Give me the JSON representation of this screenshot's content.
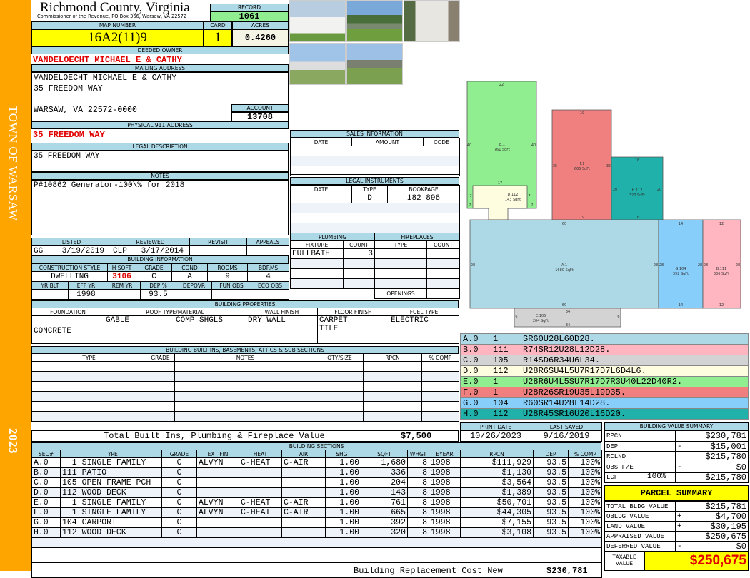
{
  "side": {
    "town": "TOWN OF WARSAW",
    "year": "2023"
  },
  "header": {
    "county": "Richmond County, Virginia",
    "subtitle": "Commissioner of the Revenue, PO Box 366, Warsaw, VA 22572",
    "record_label": "RECORD",
    "record": "1061"
  },
  "parcel": {
    "map_label": "MAP NUMBER",
    "map": "16A2(11)9",
    "card_label": "CARD",
    "card": "1",
    "acres_label": "ACRES",
    "acres": "0.4260"
  },
  "owner": {
    "label": "DEEDED OWNER",
    "name": "VANDELOECHT MICHAEL E & CATHY"
  },
  "mailing": {
    "label": "MAILING ADDRESS",
    "line1": "VANDELOECHT MICHAEL E & CATHY",
    "line2": "35 FREEDOM WAY",
    "line3": "WARSAW, VA 22572-0000",
    "account_label": "ACCOUNT",
    "account": "13708"
  },
  "physical": {
    "label": "PHYSICAL 911 ADDRESS",
    "value": "35 FREEDOM WAY"
  },
  "legal": {
    "label": "LEGAL DESCRIPTION",
    "value": "35 FREEDOM WAY"
  },
  "notes": {
    "label": "NOTES",
    "value": "P#10862 Generator-100\\% for 2018"
  },
  "listed": {
    "headers": [
      "LISTED",
      "REVIEWED",
      "REVISIT",
      "APPEALS"
    ],
    "values": [
      "GG    3/19/2019",
      "CLP   3/17/2014",
      "",
      ""
    ]
  },
  "building_info": {
    "label": "BUILDING INFORMATION",
    "headers1": [
      "CONSTRUCTION STYLE",
      "H SQFT",
      "GRADE",
      "COND",
      "ROOMS",
      "BDRMS"
    ],
    "values1": [
      "DWELLING",
      "3106",
      "C",
      "A",
      "9",
      "4"
    ],
    "headers2": [
      "YR BLT",
      "EFF YR",
      "REM YR",
      "DEP %",
      "DEPOVR",
      "FUN OBS",
      "ECO OBS"
    ],
    "values2": [
      "",
      "1998",
      "",
      "93.5",
      "",
      "",
      ""
    ]
  },
  "sales": {
    "label": "SALES INFORMATION",
    "headers": [
      "DATE",
      "AMOUNT",
      "CODE"
    ]
  },
  "instruments": {
    "label": "LEGAL INSTRUMENTS",
    "headers": [
      "DATE",
      "TYPE",
      "BOOKPAGE"
    ],
    "rows": [
      [
        "",
        "D",
        "182 896"
      ]
    ]
  },
  "plumbing": {
    "label": "PLUMBING",
    "headers": [
      "FIXTURE",
      "COUNT"
    ],
    "rows": [
      [
        "FULLBATH",
        "3"
      ]
    ]
  },
  "fireplaces": {
    "label": "FIREPLACES",
    "headers": [
      "TYPE",
      "COUNT"
    ],
    "openings_label": "OPENINGS"
  },
  "properties": {
    "label": "BUILDING PROPERTIES",
    "headers": [
      "FOUNDATION",
      "ROOF TYPE/MATERIAL",
      "WALL FINISH",
      "FLOOR FINISH",
      "FUEL TYPE"
    ],
    "foundation": "CONCRETE",
    "roof_type": "GABLE",
    "roof_material": "COMP SHGLS",
    "wall": "DRY WALL",
    "floor1": "CARPET",
    "floor2": "TILE",
    "fuel": "ELECTRIC"
  },
  "builtins": {
    "label": "BUILDING BUILT INS, BASEMENTS, ATTICS & SUB SECTIONS",
    "headers": [
      "TYPE",
      "GRADE",
      "NOTES",
      "QTY/SIZE",
      "RPCN",
      "% COMP"
    ],
    "total_label": "Total Built Ins, Plumbing & Fireplace Value",
    "total": "$7,500"
  },
  "dates": {
    "print_label": "PRINT DATE",
    "print": "10/26/2023",
    "saved_label": "LAST SAVED",
    "saved": "9/16/2019"
  },
  "sections": {
    "label": "BUILDING SECTIONS",
    "headers": [
      "SEC#",
      "TYPE",
      "GRADE",
      "EXT FIN",
      "HEAT",
      "AIR",
      "SHGT",
      "SQFT",
      "WHGT",
      "EYEAR",
      "RPCN",
      "DEP",
      "% COMP"
    ],
    "rows": [
      [
        "A.0",
        "  1 SINGLE FAMILY",
        "C",
        "ALVYN",
        "C-HEAT",
        "C-AIR",
        "1.00",
        "1,680",
        "8",
        "1998",
        "$111,929",
        "93.5",
        "100%"
      ],
      [
        "B.0",
        "111 PATIO",
        "C",
        "",
        "",
        "",
        "1.00",
        "336",
        "8",
        "1998",
        "$1,130",
        "93.5",
        "100%"
      ],
      [
        "C.0",
        "105 OPEN FRAME PCH",
        "C",
        "",
        "",
        "",
        "1.00",
        "204",
        "8",
        "1998",
        "$3,564",
        "93.5",
        "100%"
      ],
      [
        "D.0",
        "112 WOOD DECK",
        "C",
        "",
        "",
        "",
        "1.00",
        "143",
        "8",
        "1998",
        "$1,389",
        "93.5",
        "100%"
      ],
      [
        "E.0",
        "  1 SINGLE FAMILY",
        "C",
        "ALVYN",
        "C-HEAT",
        "C-AIR",
        "1.00",
        "761",
        "8",
        "1998",
        "$50,701",
        "93.5",
        "100%"
      ],
      [
        "F.0",
        "  1 SINGLE FAMILY",
        "C",
        "ALVYN",
        "C-HEAT",
        "C-AIR",
        "1.00",
        "665",
        "8",
        "1998",
        "$44,305",
        "93.5",
        "100%"
      ],
      [
        "G.0",
        "104 CARPORT",
        "C",
        "",
        "",
        "",
        "1.00",
        "392",
        "8",
        "1998",
        "$7,155",
        "93.5",
        "100%"
      ],
      [
        "H.0",
        "112 WOOD DECK",
        "C",
        "",
        "",
        "",
        "1.00",
        "320",
        "8",
        "1998",
        "$3,108",
        "93.5",
        "100%"
      ]
    ],
    "total_label": "Building Replacement Cost New",
    "total": "$230,781"
  },
  "sketch": {
    "labels": {
      "A": [
        "A.1",
        "1680 SqFt"
      ],
      "B": [
        "B.111",
        "336 SqFt"
      ],
      "C": [
        "C.105",
        "204 SqFt"
      ],
      "D": [
        "D.112",
        "143 SqFt"
      ],
      "E": [
        "E.1",
        "761 SqFt"
      ],
      "F": [
        "F.1",
        "665 SqFt"
      ],
      "G": [
        "G.104",
        "392 SqFt"
      ],
      "H": [
        "H.112",
        "320 SqFt"
      ]
    },
    "dims": {
      "A_top": "60",
      "A_bot": "60",
      "A_l": "28",
      "A_r": "28",
      "B_top": "12",
      "B_bot": "12",
      "B_l": "28",
      "B_r": "28",
      "C_top": "34",
      "C_bot": "34",
      "C_l": "6",
      "C_r": "6",
      "D_top": "17",
      "D_l": "7",
      "D_r": "7",
      "D_l2": "2",
      "D_r2": "2",
      "E_top": "22",
      "E_l": "40",
      "E_r": "40",
      "F_top": "19",
      "F_bot": "19",
      "F_l": "35",
      "F_r": "35",
      "G_top": "14",
      "G_bot": "14",
      "G_l": "28",
      "G_r": "28",
      "H_top": "16",
      "H_bot": "16",
      "H_l": "20",
      "H_r": "20"
    },
    "colors": {
      "A": "#add8e6",
      "B": "#ffb6c1",
      "C": "#d3d3d3",
      "D": "#fffde0",
      "E": "#90ee90",
      "F": "#f08080",
      "G": "#87cefa",
      "H": "#20b2aa"
    }
  },
  "codes": [
    {
      "sec": "A.0",
      "code": "1",
      "vector": "SR60U28L60D28.",
      "color": "#add8e6"
    },
    {
      "sec": "B.0",
      "code": "111",
      "vector": "R74SR12U28L12D28.",
      "color": "#ffb6c1"
    },
    {
      "sec": "C.0",
      "code": "105",
      "vector": "R14SD6R34U6L34.",
      "color": "#d3d3d3"
    },
    {
      "sec": "D.0",
      "code": "112",
      "vector": "U28R6SU4L5U7R17D7L6D4L6.",
      "color": "#fffde0"
    },
    {
      "sec": "E.0",
      "code": "1",
      "vector": "U28R6U4L5SU7R17D7R3U40L22D40R2.",
      "color": "#90ee90"
    },
    {
      "sec": "F.0",
      "code": "1",
      "vector": "U28R26SR19U35L19D35.",
      "color": "#f08080"
    },
    {
      "sec": "G.0",
      "code": "104",
      "vector": "R60SR14U28L14D28.",
      "color": "#87cefa"
    },
    {
      "sec": "H.0",
      "code": "112",
      "vector": "U28R45SR16U20L16D20.",
      "color": "#20b2aa"
    }
  ],
  "value_summary": {
    "label": "BUILDING VALUE SUMMARY",
    "rows": [
      {
        "k": "RPCN",
        "s": "",
        "v": "$230,781"
      },
      {
        "k": "DEP",
        "s": "-",
        "v": "$15,001"
      },
      {
        "k": "RCLND",
        "s": "",
        "v": "$215,780"
      },
      {
        "k": "OBS F/E",
        "s": "-",
        "v": "$0"
      },
      {
        "k": "LCF",
        "pct": "100%",
        "s": "",
        "v": "$215,780"
      }
    ]
  },
  "parcel_summary": {
    "title": "PARCEL SUMMARY",
    "rows": [
      {
        "k": "TOTAL BLDG VALUE",
        "s": "",
        "v": "$215,781"
      },
      {
        "k": "OBLDG VALUE",
        "s": "+",
        "v": "$4,700"
      },
      {
        "k": "LAND VALUE",
        "s": "+",
        "v": "$30,195"
      },
      {
        "k": "APPRAISED VALUE",
        "s": "",
        "v": "$250,675"
      },
      {
        "k": "DEFERRED VALUE",
        "s": "-",
        "v": "$0"
      }
    ],
    "taxable_label": "TAXABLE VALUE",
    "taxable": "$250,675"
  }
}
